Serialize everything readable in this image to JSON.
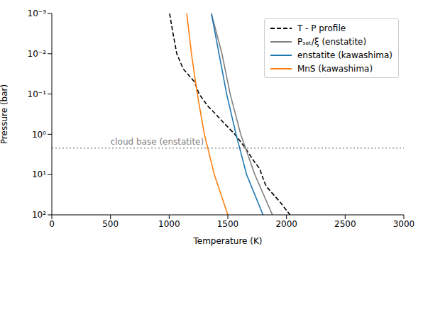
{
  "chart_data": {
    "type": "line",
    "x_label": "Temperature (K)",
    "y_label": "Pressure (bar)",
    "log": "y",
    "legend": "upper right",
    "grid": false,
    "xlim": [
      0,
      3000
    ],
    "xticks": [
      0,
      500,
      1000,
      1500,
      2000,
      2500,
      3000
    ],
    "ylim": [
      0.001,
      100
    ],
    "yticks": [
      {
        "value": 0.001,
        "label": "10⁻³"
      },
      {
        "value": 0.01,
        "label": "10⁻²"
      },
      {
        "value": 0.1,
        "label": "10⁻¹"
      },
      {
        "value": 1,
        "label": "10⁰"
      },
      {
        "value": 10,
        "label": "10¹"
      },
      {
        "value": 100,
        "label": "10²"
      }
    ],
    "series": [
      {
        "name": "T - P profile",
        "color": "#000000",
        "line_style": "dashed",
        "x": [
          1004,
          1028,
          1065,
          1119,
          1216,
          1255,
          1330,
          1390,
          1460,
          1560,
          1640,
          1730,
          1770,
          1810,
          1830,
          1950,
          2030
        ],
        "values": [
          0.001,
          0.0026,
          0.01,
          0.0235,
          0.05,
          0.1,
          0.2,
          0.3,
          0.5,
          1,
          2,
          5,
          7,
          15,
          20,
          50,
          100
        ]
      },
      {
        "name": "Pₛₐₜ/ξ (enstatite)",
        "color": "#808080",
        "line_style": "solid",
        "x": [
          1360,
          1450,
          1520,
          1610,
          1730,
          1880
        ],
        "values": [
          0.001,
          0.01,
          0.1,
          1,
          10,
          100
        ]
      },
      {
        "name": "enstatite (kawashima)",
        "color": "#1f77b4",
        "line_style": "solid",
        "x": [
          1360,
          1425,
          1490,
          1570,
          1660,
          1800
        ],
        "values": [
          0.001,
          0.01,
          0.1,
          1,
          10,
          100
        ]
      },
      {
        "name": "MnS (kawashima)",
        "color": "#ff7f0e",
        "line_style": "solid",
        "x": [
          1150,
          1190,
          1240,
          1300,
          1385,
          1500
        ],
        "values": [
          0.001,
          0.01,
          0.1,
          1,
          10,
          100
        ]
      }
    ],
    "annotations": [
      {
        "text": "cloud base (enstatite)",
        "x": 500,
        "y": 2.2,
        "color": "#808080",
        "line_style": "dotted"
      }
    ]
  }
}
